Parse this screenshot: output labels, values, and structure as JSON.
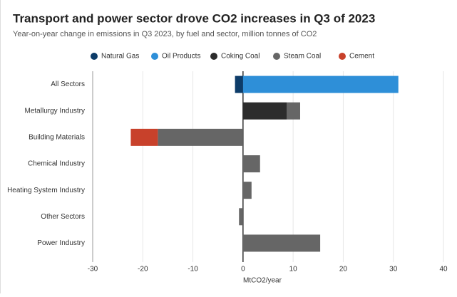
{
  "chart_data": {
    "type": "bar",
    "orientation": "horizontal",
    "stacked": true,
    "title": "Transport and power sector drove CO2 increases in Q3 of 2023",
    "subtitle": "Year-on-year change in emissions in Q3 2023, by fuel and sector, million tonnes of CO2",
    "x_label": "MtCO2/year",
    "categories": [
      "All Sectors",
      "Metallurgy Industry",
      "Building Materials",
      "Chemical Industry",
      "Heating System Industry",
      "Other Sectors",
      "Power Industry"
    ],
    "series": [
      {
        "name": "Natural Gas",
        "color": "#0d3c69",
        "values": [
          -1.6,
          null,
          null,
          null,
          null,
          null,
          null
        ]
      },
      {
        "name": "Oil Products",
        "color": "#2e8fd8",
        "values": [
          31.0,
          null,
          null,
          null,
          null,
          null,
          null
        ]
      },
      {
        "name": "Coking Coal",
        "color": "#2c2c2c",
        "values": [
          null,
          8.7,
          null,
          null,
          null,
          null,
          null
        ]
      },
      {
        "name": "Steam Coal",
        "color": "#666666",
        "values": [
          null,
          2.7,
          -17.0,
          3.4,
          1.7,
          -0.8,
          15.4
        ]
      },
      {
        "name": "Cement",
        "color": "#c8412b",
        "values": [
          null,
          null,
          -5.4,
          null,
          null,
          null,
          null
        ]
      }
    ],
    "xlim": [
      -30,
      40
    ],
    "xticks": [
      -30,
      -20,
      -10,
      0,
      10,
      20,
      30,
      40
    ],
    "grid": true
  }
}
